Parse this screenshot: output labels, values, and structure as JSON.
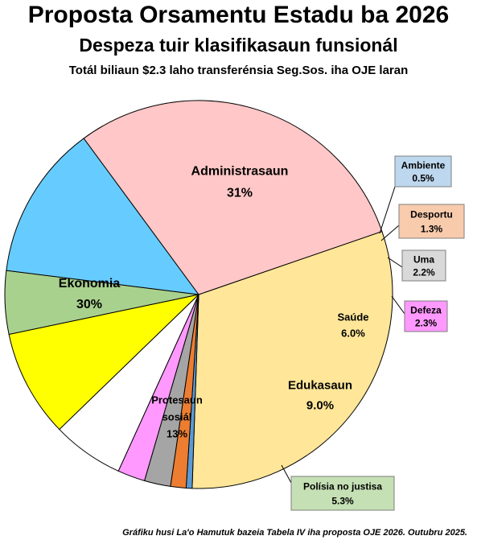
{
  "title": "Proposta Orsamentu Estadu ba 2026",
  "subtitle": "Despeza tuir klasifikasaun funsionál",
  "subtitle2": "Totál biliaun $2.3 laho transferénsia Seg.Sos. iha OJE laran",
  "source": "Gráfiku husi La'o Hamutuk bazeia Tabela IV iha proposta OJE 2026. Outubru 2025.",
  "chart_data": {
    "type": "pie",
    "title": "Proposta Orsamentu Estadu ba 2026",
    "subtitle": "Despeza tuir klasifikasaun funsionál",
    "slices": [
      {
        "name": "Administrasaun",
        "label": "31%",
        "value": 31.0,
        "color": "#FFE699"
      },
      {
        "name": "Ambiente",
        "label": "0.5%",
        "value": 0.5,
        "color": "#5B9BD5"
      },
      {
        "name": "Desportu",
        "label": "1.3%",
        "value": 1.3,
        "color": "#ED7D31"
      },
      {
        "name": "Uma",
        "label": "2.2%",
        "value": 2.2,
        "color": "#A5A5A5"
      },
      {
        "name": "Defeza",
        "label": "2.3%",
        "value": 2.3,
        "color": "#FF99FF"
      },
      {
        "name": "Saúde",
        "label": "6.0%",
        "value": 6.0,
        "color": "#FFFFFF"
      },
      {
        "name": "Edukasaun",
        "label": "9.0%",
        "value": 9.0,
        "color": "#FFFF00"
      },
      {
        "name": "Polísia no justisa",
        "label": "5.3%",
        "value": 5.3,
        "color": "#A9D18E"
      },
      {
        "name": "Protesaun sosiál",
        "label": "13%",
        "value": 13.0,
        "color": "#66CCFF"
      },
      {
        "name": "Ekonomia",
        "label": "30%",
        "value": 30.0,
        "color": "#FFC7C7"
      }
    ],
    "callout_colors": {
      "Ambiente": "#BDD7EE",
      "Desportu": "#F8CBAD",
      "Uma": "#D9D9D9",
      "Defeza": "#FF99FF",
      "Polísia no justisa": "#C5E0B4"
    }
  }
}
